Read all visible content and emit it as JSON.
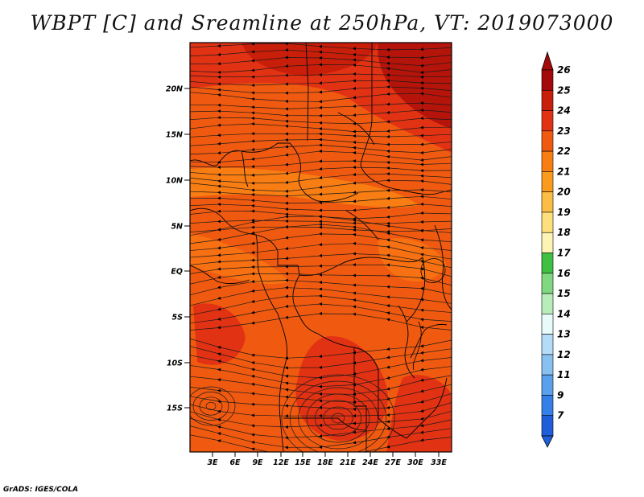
{
  "title": "WBPT [C] and Sreamline at 250hPa, VT: 2019073000",
  "footer": "GrADS: IGES/COLA",
  "map": {
    "lat_ticks": [
      "20N",
      "15N",
      "10N",
      "5N",
      "EQ",
      "5S",
      "10S",
      "15S"
    ],
    "lon_ticks": [
      "3E",
      "6E",
      "9E",
      "12E",
      "15E",
      "18E",
      "21E",
      "24E",
      "27E",
      "30E",
      "33E"
    ],
    "field": "wet-bulb potential temperature with streamlines",
    "dominant_color": "#f05a10"
  },
  "colorbar": {
    "labels": [
      "26",
      "25",
      "24",
      "23",
      "22",
      "21",
      "20",
      "19",
      "18",
      "17",
      "16",
      "15",
      "14",
      "13",
      "12",
      "11",
      "9",
      "7"
    ],
    "colors": [
      "#a50a0a",
      "#c81e0a",
      "#e23214",
      "#f05a10",
      "#f87d12",
      "#fa9b1e",
      "#fcbd44",
      "#fde07c",
      "#fdf3b4",
      "#40c040",
      "#80d880",
      "#b8ecb8",
      "#e8fafa",
      "#b4dcf8",
      "#88c0f0",
      "#5aa0ec",
      "#3480e8",
      "#1e5ed8"
    ]
  },
  "chart_data": {
    "type": "heatmap",
    "title": "WBPT [C] and Sreamline at 250hPa, VT: 2019073000",
    "x_ticks": [
      "3E",
      "6E",
      "9E",
      "12E",
      "15E",
      "18E",
      "21E",
      "24E",
      "27E",
      "30E",
      "33E"
    ],
    "y_ticks": [
      "20N",
      "15N",
      "10N",
      "5N",
      "EQ",
      "5S",
      "10S",
      "15S"
    ],
    "color_levels": [
      7,
      9,
      11,
      12,
      13,
      14,
      15,
      16,
      17,
      18,
      19,
      20,
      21,
      22,
      23,
      24,
      25,
      26
    ],
    "value_range": [
      22,
      26
    ],
    "dominant_range": "23-24"
  }
}
